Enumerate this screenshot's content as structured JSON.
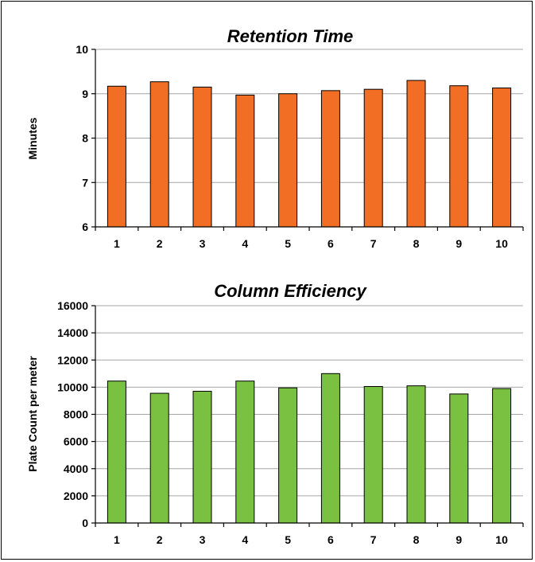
{
  "chart_data": [
    {
      "type": "bar",
      "title": "Retention Time",
      "xlabel": "",
      "ylabel": "Minutes",
      "categories": [
        "1",
        "2",
        "3",
        "4",
        "5",
        "6",
        "7",
        "8",
        "9",
        "10"
      ],
      "values": [
        9.17,
        9.27,
        9.15,
        8.97,
        9.0,
        9.07,
        9.1,
        9.3,
        9.18,
        9.13
      ],
      "ylim": [
        6,
        10
      ],
      "yticks": [
        6,
        7,
        8,
        9,
        10
      ],
      "grid": true,
      "color": "#f26e24"
    },
    {
      "type": "bar",
      "title": "Column Efficiency",
      "xlabel": "",
      "ylabel": "Plate Count per meter",
      "categories": [
        "1",
        "2",
        "3",
        "4",
        "5",
        "6",
        "7",
        "8",
        "9",
        "10"
      ],
      "values": [
        10450,
        9550,
        9700,
        10450,
        9950,
        11000,
        10050,
        10100,
        9500,
        9900
      ],
      "ylim": [
        0,
        16000
      ],
      "yticks": [
        0,
        2000,
        4000,
        6000,
        8000,
        10000,
        12000,
        14000,
        16000
      ],
      "grid": true,
      "color": "#7ac142"
    }
  ]
}
